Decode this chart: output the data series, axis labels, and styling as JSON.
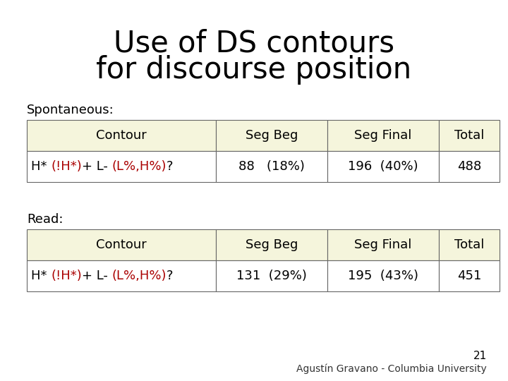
{
  "title_line1": "Use of DS contours",
  "title_line2": "for discourse position",
  "title_fontsize": 30,
  "title_color": "#000000",
  "title_fontweight": "normal",
  "bg_color": "#ffffff",
  "table_header_bg": "#f5f5dc",
  "table_data_bg": "#ffffff",
  "table_border_color": "#666666",
  "spontaneous_label": "Spontaneous:",
  "read_label": "Read:",
  "header_cols": [
    "Contour",
    "Seg Beg",
    "Seg Final",
    "Total"
  ],
  "contour_pieces": [
    [
      "H* ",
      "#000000"
    ],
    [
      "(!H*)",
      "#aa0000"
    ],
    [
      "+ L- ",
      "#000000"
    ],
    [
      "(L%,H%)",
      "#aa0000"
    ],
    [
      "?",
      "#000000"
    ]
  ],
  "spont_data": [
    "88   (18%)",
    "196  (40%)",
    "488"
  ],
  "read_data": [
    "131  (29%)",
    "195  (43%)",
    "451"
  ],
  "footer_num": "21",
  "footer_text": "Agustín Gravano - Columbia University",
  "label_fontsize": 13,
  "header_fontsize": 13,
  "data_fontsize": 13,
  "footer_fontsize": 10,
  "footer_num_fontsize": 11
}
